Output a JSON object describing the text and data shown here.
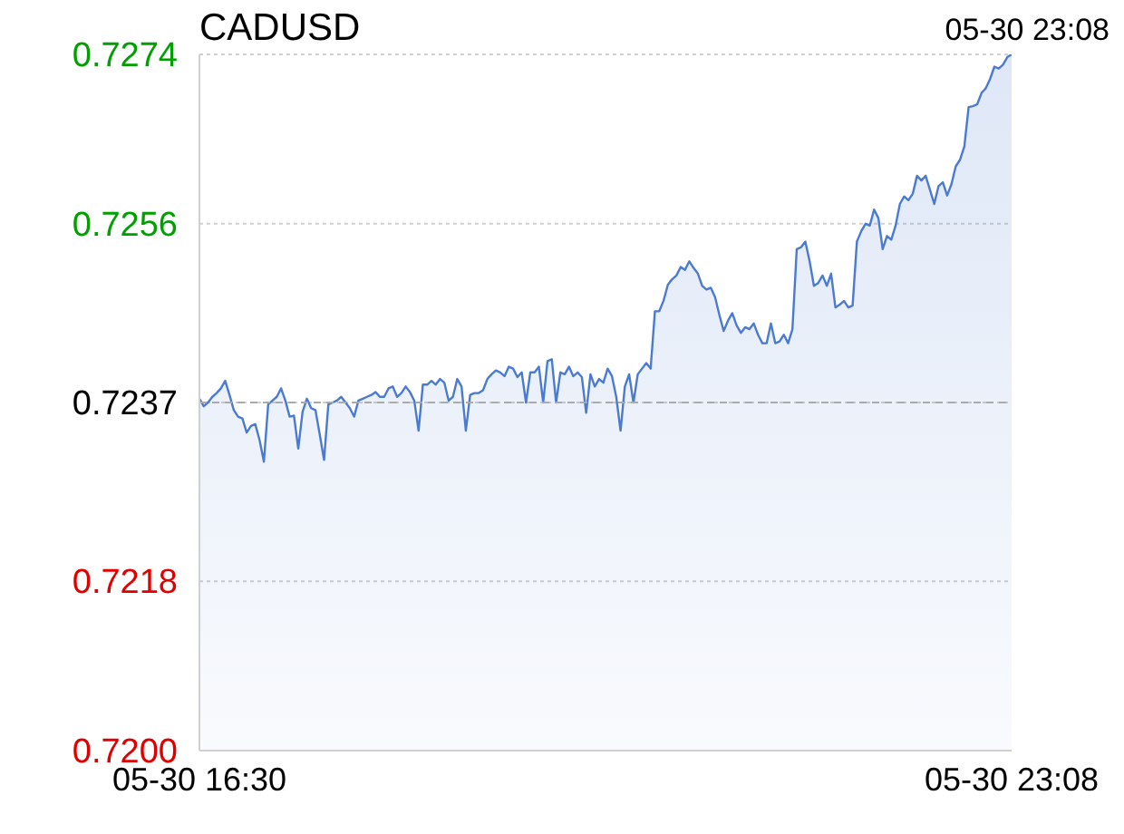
{
  "chart_data": {
    "type": "area",
    "title": "CADUSD",
    "subtitle": "05-30 23:08",
    "categories": [
      "05-30 16:30",
      null,
      null,
      null,
      null,
      null,
      null,
      null,
      null,
      null,
      null,
      null,
      null,
      null,
      null,
      null,
      null,
      null,
      null,
      null,
      null,
      null,
      null,
      null,
      null,
      null,
      null,
      null,
      null,
      null,
      null,
      null,
      null,
      null,
      null,
      null,
      null,
      null,
      null,
      null,
      null,
      null,
      null,
      null,
      null,
      null,
      null,
      null,
      null,
      null,
      null,
      null,
      null,
      null,
      null,
      null,
      null,
      null,
      null,
      null,
      null,
      null,
      null,
      null,
      null,
      null,
      null,
      null,
      null,
      null,
      null,
      null,
      null,
      null,
      null,
      null,
      null,
      null,
      null,
      null,
      null,
      null,
      null,
      null,
      null,
      null,
      null,
      null,
      null,
      null,
      null,
      null,
      null,
      null,
      null,
      null,
      null,
      null,
      null,
      null,
      null,
      null,
      null,
      null,
      null,
      null,
      null,
      null,
      null,
      null,
      null,
      null,
      null,
      null,
      null,
      null,
      null,
      null,
      null,
      null,
      null,
      null,
      null,
      null,
      null,
      null,
      null,
      null,
      null,
      null,
      null,
      null,
      null,
      null,
      null,
      null,
      null,
      null,
      null,
      null,
      null,
      null,
      null,
      null,
      null,
      null,
      null,
      null,
      null,
      null,
      null,
      null,
      null,
      null,
      null,
      null,
      null,
      null,
      null,
      null,
      null,
      null,
      null,
      null,
      null,
      null,
      null,
      null,
      null,
      null,
      null,
      null,
      null,
      null,
      null,
      null,
      null,
      null,
      null,
      null,
      null,
      null,
      null,
      null,
      null,
      null,
      null,
      null,
      null,
      "05-30 23:08"
    ],
    "series": [
      {
        "color": "#4a7bd0",
        "values": [
          0.72374,
          0.72366,
          0.7237,
          0.72376,
          0.7238,
          0.72385,
          0.72393,
          0.72378,
          0.72362,
          0.72355,
          0.72353,
          0.72338,
          0.72345,
          0.72347,
          0.7233,
          0.72307,
          0.72368,
          0.72372,
          0.72376,
          0.72385,
          0.72372,
          0.72355,
          0.72356,
          0.72321,
          0.7236,
          0.72374,
          0.72364,
          0.72362,
          0.72336,
          0.72309,
          0.72368,
          0.7237,
          0.72372,
          0.72376,
          0.7237,
          0.72364,
          0.72355,
          0.72372,
          0.72374,
          0.72376,
          0.72378,
          0.72381,
          0.72376,
          0.72376,
          0.72385,
          0.72387,
          0.72376,
          0.7238,
          0.72387,
          0.72381,
          0.72372,
          0.7234,
          0.72389,
          0.72389,
          0.72393,
          0.72389,
          0.72395,
          0.72391,
          0.72372,
          0.72376,
          0.72395,
          0.72387,
          0.7234,
          0.72378,
          0.7238,
          0.7238,
          0.72383,
          0.72395,
          0.724,
          0.72404,
          0.72402,
          0.72398,
          0.72408,
          0.72406,
          0.72397,
          0.72402,
          0.7237,
          0.72402,
          0.72402,
          0.72408,
          0.7237,
          0.72414,
          0.72416,
          0.7237,
          0.72402,
          0.724,
          0.72408,
          0.72398,
          0.72402,
          0.72397,
          0.72359,
          0.724,
          0.72387,
          0.72395,
          0.72391,
          0.72406,
          0.72398,
          0.72376,
          0.7234,
          0.72387,
          0.724,
          0.7237,
          0.724,
          0.72406,
          0.72412,
          0.72406,
          0.72467,
          0.72467,
          0.72478,
          0.72495,
          0.72501,
          0.72505,
          0.72514,
          0.72511,
          0.7252,
          0.72513,
          0.72507,
          0.72494,
          0.7249,
          0.72492,
          0.72482,
          0.72463,
          0.72446,
          0.72457,
          0.72465,
          0.72452,
          0.72444,
          0.7245,
          0.72448,
          0.72454,
          0.72442,
          0.72433,
          0.72433,
          0.72454,
          0.72433,
          0.72435,
          0.72442,
          0.72433,
          0.72448,
          0.72533,
          0.72535,
          0.72541,
          0.7252,
          0.72494,
          0.72497,
          0.72505,
          0.72494,
          0.72507,
          0.72471,
          0.72474,
          0.72478,
          0.72471,
          0.72473,
          0.72541,
          0.72552,
          0.7256,
          0.72558,
          0.72575,
          0.72566,
          0.72533,
          0.72547,
          0.72543,
          0.72558,
          0.72581,
          0.72589,
          0.72585,
          0.72592,
          0.72611,
          0.72606,
          0.72611,
          0.72596,
          0.72581,
          0.726,
          0.72604,
          0.7259,
          0.72602,
          0.72621,
          0.72628,
          0.72642,
          0.72684,
          0.72685,
          0.72687,
          0.72699,
          0.72704,
          0.72714,
          0.72727,
          0.72725,
          0.72729,
          0.72737,
          0.7274
        ]
      }
    ],
    "ylim": [
      0.72,
      0.7274
    ],
    "yticks": [
      {
        "value": 0.72,
        "label": "0.7200"
      },
      0.7218,
      0.7237,
      0.7256,
      0.7274
    ],
    "ref_lines": [
      {
        "axis": "y",
        "value": 0.7237,
        "label": null,
        "color": "#aaaaaa",
        "line_style": "dashed"
      }
    ],
    "grid": "y"
  }
}
